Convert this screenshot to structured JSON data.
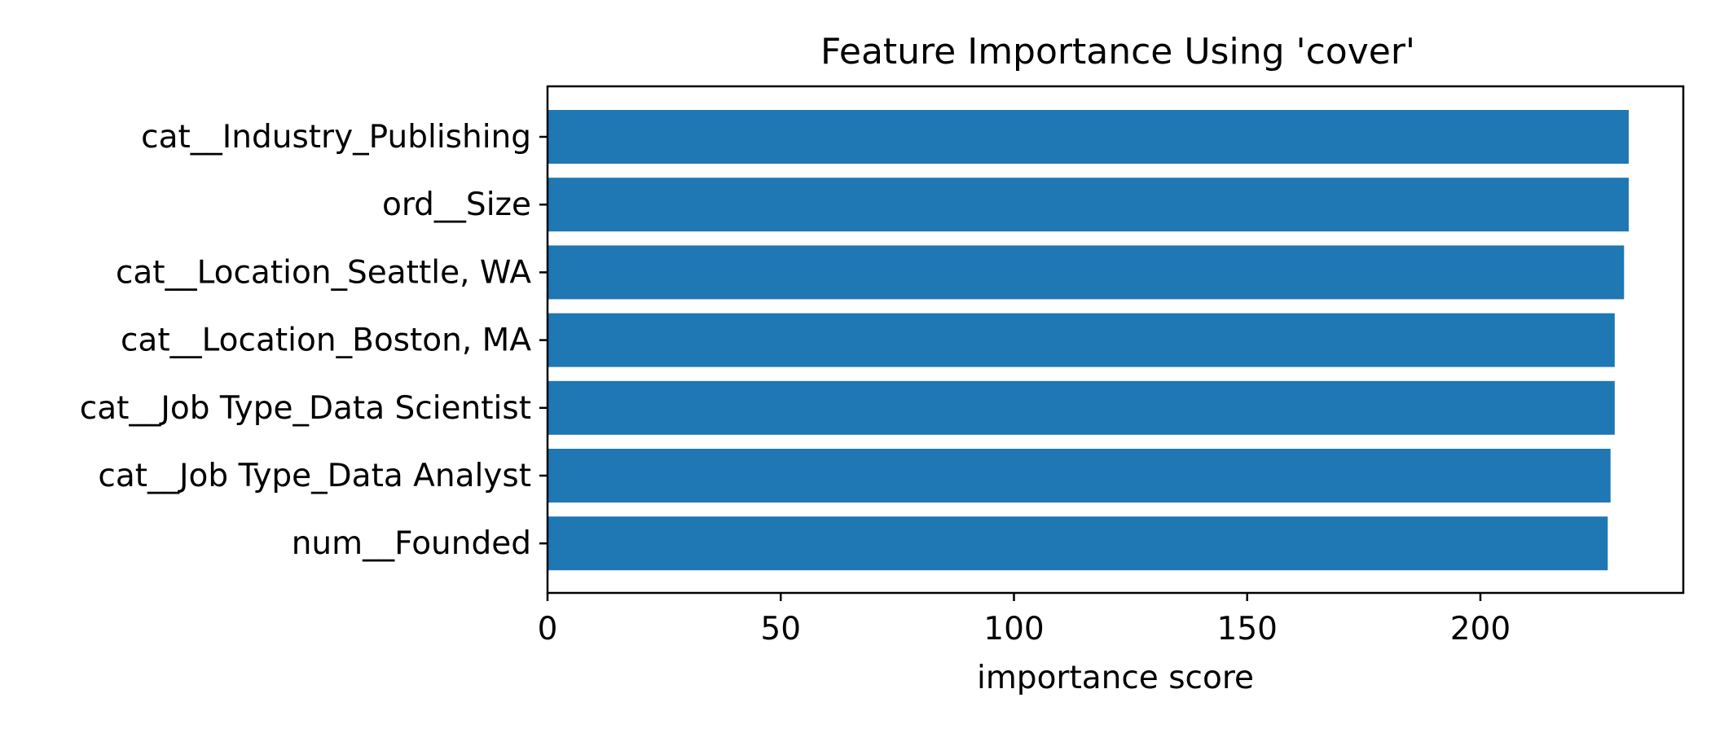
{
  "chart_data": {
    "type": "bar",
    "orientation": "horizontal",
    "title": "Feature Importance Using 'cover'",
    "xlabel": "importance score",
    "ylabel": "",
    "categories": [
      "cat__Industry_Publishing",
      "ord__Size",
      "cat__Location_Seattle, WA",
      "cat__Location_Boston, MA",
      "cat__Job Type_Data Scientist",
      "cat__Job Type_Data Analyst",
      "num__Founded"
    ],
    "values": [
      231.8,
      231.8,
      230.8,
      228.8,
      228.8,
      227.9,
      227.3
    ],
    "xlim": [
      0,
      243.5
    ],
    "xticks": [
      0,
      50,
      100,
      150,
      200
    ],
    "grid": false,
    "bar_color": "#1f77b4"
  }
}
